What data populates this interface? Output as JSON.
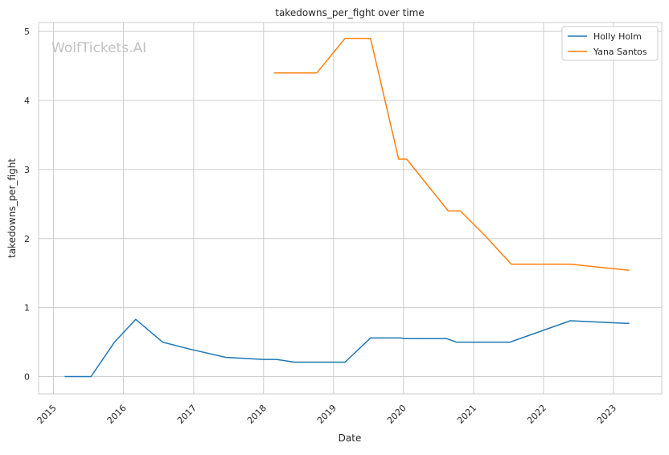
{
  "chart_data": {
    "type": "line",
    "title": "takedowns_per_fight over time",
    "xlabel": "Date",
    "ylabel": "takedowns_per_fight",
    "watermark": "WolfTickets.AI",
    "x_ticks": [
      "2015",
      "2016",
      "2017",
      "2018",
      "2019",
      "2020",
      "2021",
      "2022",
      "2023"
    ],
    "y_ticks": [
      0,
      1,
      2,
      3,
      4,
      5
    ],
    "xlim": [
      "2014-10-15",
      "2023-09-10"
    ],
    "ylim": [
      -0.25,
      5.13
    ],
    "grid": true,
    "legend_position": "top-right",
    "series": [
      {
        "name": "Holly Holm",
        "color": "#1f77b4",
        "points": [
          [
            "2015-02-28",
            0.0
          ],
          [
            "2015-07-15",
            0.0
          ],
          [
            "2015-11-15",
            0.5
          ],
          [
            "2016-03-05",
            0.83
          ],
          [
            "2016-07-23",
            0.5
          ],
          [
            "2016-12-10",
            0.4
          ],
          [
            "2017-06-17",
            0.28
          ],
          [
            "2017-12-30",
            0.25
          ],
          [
            "2018-03-10",
            0.25
          ],
          [
            "2018-06-09",
            0.21
          ],
          [
            "2019-03-02",
            0.21
          ],
          [
            "2019-07-13",
            0.56
          ],
          [
            "2019-12-14",
            0.56
          ],
          [
            "2020-01-10",
            0.55
          ],
          [
            "2020-08-15",
            0.55
          ],
          [
            "2020-10-03",
            0.5
          ],
          [
            "2021-07-10",
            0.5
          ],
          [
            "2022-05-21",
            0.81
          ],
          [
            "2023-03-25",
            0.77
          ]
        ]
      },
      {
        "name": "Yana Santos",
        "color": "#ff7f0e",
        "points": [
          [
            "2018-02-24",
            4.4
          ],
          [
            "2018-10-06",
            4.4
          ],
          [
            "2019-03-02",
            4.9
          ],
          [
            "2019-07-13",
            4.9
          ],
          [
            "2019-12-07",
            3.15
          ],
          [
            "2020-01-18",
            3.15
          ],
          [
            "2020-08-22",
            2.4
          ],
          [
            "2020-10-24",
            2.4
          ],
          [
            "2021-02-27",
            2.05
          ],
          [
            "2021-07-17",
            1.63
          ],
          [
            "2022-05-21",
            1.63
          ],
          [
            "2023-03-25",
            1.54
          ]
        ]
      }
    ]
  }
}
